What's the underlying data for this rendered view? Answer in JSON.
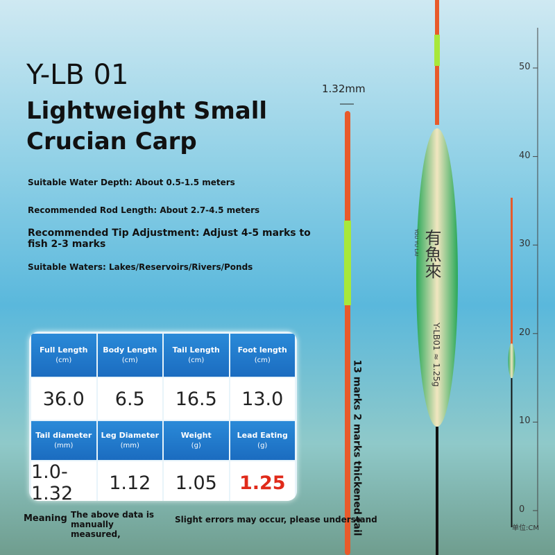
{
  "header": {
    "model": "Y-LB 01",
    "title_lines": [
      "Lightweight Small",
      "Crucian Carp"
    ]
  },
  "specs": [
    "Suitable Water Depth: About 0.5-1.5 meters",
    "Recommended Rod Length: About 2.7-4.5 meters",
    "Recommended Tip Adjustment: Adjust 4-5 marks to fish 2-3 marks",
    "Suitable Waters: Lakes/Reservoirs/Rivers/Ponds"
  ],
  "table": {
    "rows": [
      [
        {
          "label": "Full Length",
          "unit": "(cm)"
        },
        {
          "label": "Body Length",
          "unit": "(cm)"
        },
        {
          "label": "Tail Length",
          "unit": "(cm)"
        },
        {
          "label": "Foot length",
          "unit": "(cm)"
        }
      ],
      [
        "36.0",
        "6.5",
        "16.5",
        "13.0"
      ],
      [
        {
          "label": "Tail diameter",
          "unit": "(mm)"
        },
        {
          "label": "Leg Diameter",
          "unit": "(mm)"
        },
        {
          "label": "Weight",
          "unit": "(g)"
        },
        {
          "label": "Lead Eating",
          "unit": "(g)"
        }
      ],
      [
        "1.0-1.32",
        "1.12",
        "1.05",
        "1.25"
      ]
    ]
  },
  "diagram": {
    "tip_diameter": "1.32mm",
    "tail_note": "13 marks 2 marks thickened tail",
    "float_brand": "有魚來",
    "float_brand_pinyin": "YOU YU LAI",
    "float_label": "Y-LB01 ≈ 1.25g"
  },
  "scale": {
    "ticks": [
      50,
      40,
      30,
      20,
      10,
      0
    ],
    "unit": "单位:CM"
  },
  "footer": {
    "prefix": "Meaning",
    "note": "The above data is manually measured,",
    "disclaimer": "Slight errors may occur, please understand"
  }
}
